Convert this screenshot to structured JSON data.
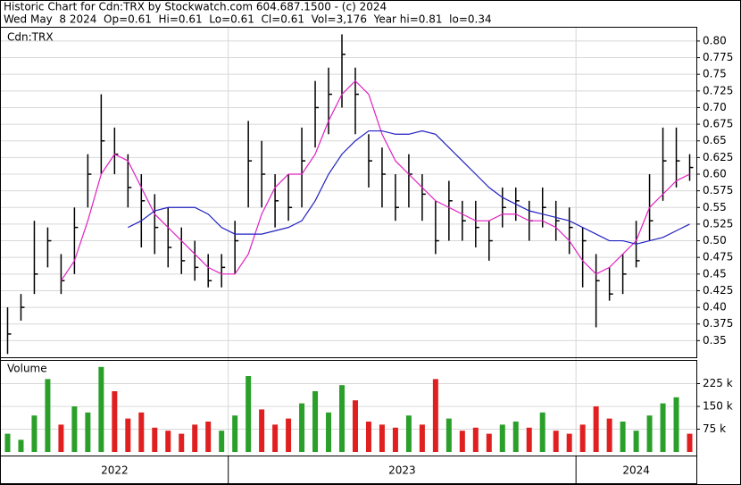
{
  "chart_data": {
    "type": "hlc",
    "title": "Historic Chart for Cdn:TRX by Stockwatch.com 604.687.1500 - (c) 2024",
    "subtitle": "Wed May  8 2024  Op=0.61  Hi=0.61  Lo=0.61  Cl=0.61  Vol=3,176  Year hi=0.81  lo=0.34",
    "symbol": "Cdn:TRX",
    "volume_label": "Volume",
    "categories": [
      "2022",
      null,
      null,
      null,
      null,
      null,
      null,
      null,
      null,
      null,
      null,
      null,
      null,
      null,
      null,
      null,
      null,
      "2023",
      null,
      null,
      null,
      null,
      null,
      null,
      null,
      null,
      null,
      null,
      null,
      null,
      null,
      null,
      null,
      null,
      null,
      null,
      null,
      null,
      null,
      null,
      null,
      null,
      null,
      "2024",
      null,
      null,
      null,
      null,
      null,
      null,
      null,
      null
    ],
    "high": [
      0.4,
      0.42,
      0.53,
      0.52,
      0.48,
      0.55,
      0.63,
      0.72,
      0.67,
      0.63,
      0.6,
      0.57,
      0.55,
      0.52,
      0.5,
      0.48,
      0.48,
      0.53,
      0.68,
      0.65,
      0.6,
      0.6,
      0.67,
      0.74,
      0.76,
      0.81,
      0.76,
      0.66,
      0.64,
      0.6,
      0.63,
      0.6,
      0.56,
      0.59,
      0.56,
      0.56,
      0.53,
      0.58,
      0.58,
      0.56,
      0.58,
      0.56,
      0.55,
      0.52,
      0.48,
      0.46,
      0.48,
      0.53,
      0.6,
      0.67,
      0.67,
      0.63
    ],
    "low": [
      0.33,
      0.38,
      0.42,
      0.46,
      0.42,
      0.45,
      0.55,
      0.6,
      0.6,
      0.55,
      0.49,
      0.48,
      0.46,
      0.45,
      0.44,
      0.43,
      0.43,
      0.45,
      0.55,
      0.55,
      0.52,
      0.53,
      0.55,
      0.64,
      0.66,
      0.7,
      0.66,
      0.58,
      0.55,
      0.53,
      0.55,
      0.53,
      0.48,
      0.5,
      0.5,
      0.49,
      0.47,
      0.52,
      0.53,
      0.5,
      0.52,
      0.5,
      0.48,
      0.43,
      0.37,
      0.41,
      0.42,
      0.46,
      0.5,
      0.56,
      0.58,
      0.59
    ],
    "close": [
      0.36,
      0.4,
      0.45,
      0.5,
      0.44,
      0.52,
      0.6,
      0.65,
      0.63,
      0.58,
      0.56,
      0.52,
      0.49,
      0.47,
      0.46,
      0.44,
      0.46,
      0.5,
      0.62,
      0.6,
      0.56,
      0.55,
      0.62,
      0.7,
      0.72,
      0.78,
      0.72,
      0.62,
      0.6,
      0.55,
      0.6,
      0.57,
      0.5,
      0.56,
      0.53,
      0.52,
      0.5,
      0.55,
      0.56,
      0.53,
      0.55,
      0.53,
      0.52,
      0.5,
      0.44,
      0.42,
      0.45,
      0.47,
      0.53,
      0.62,
      0.62,
      0.61
    ],
    "series": [
      {
        "name": "MA short",
        "color": "#e020c0",
        "values": [
          null,
          null,
          null,
          null,
          0.44,
          0.47,
          0.53,
          0.6,
          0.63,
          0.62,
          0.58,
          0.54,
          0.52,
          0.5,
          0.48,
          0.46,
          0.45,
          0.45,
          0.48,
          0.54,
          0.58,
          0.6,
          0.6,
          0.63,
          0.68,
          0.72,
          0.74,
          0.72,
          0.66,
          0.62,
          0.6,
          0.58,
          0.56,
          0.55,
          0.54,
          0.53,
          0.53,
          0.54,
          0.54,
          0.53,
          0.53,
          0.52,
          0.5,
          0.47,
          0.45,
          0.46,
          0.48,
          0.5,
          0.55,
          0.57,
          0.59,
          0.6
        ]
      },
      {
        "name": "MA long",
        "color": "#2020c0",
        "values": [
          null,
          null,
          null,
          null,
          null,
          null,
          null,
          null,
          null,
          0.52,
          0.53,
          0.545,
          0.55,
          0.55,
          0.55,
          0.54,
          0.52,
          0.51,
          0.51,
          0.51,
          0.515,
          0.52,
          0.53,
          0.56,
          0.6,
          0.63,
          0.65,
          0.665,
          0.665,
          0.66,
          0.66,
          0.665,
          0.66,
          0.64,
          0.62,
          0.6,
          0.58,
          0.565,
          0.555,
          0.545,
          0.54,
          0.535,
          0.53,
          0.52,
          0.51,
          0.5,
          0.5,
          0.495,
          0.5,
          0.505,
          0.515,
          0.525
        ]
      }
    ],
    "volume": [
      60000,
      40000,
      120000,
      240000,
      90000,
      150000,
      130000,
      280000,
      200000,
      110000,
      130000,
      80000,
      70000,
      60000,
      90000,
      100000,
      70000,
      120000,
      250000,
      140000,
      90000,
      110000,
      160000,
      200000,
      130000,
      220000,
      170000,
      100000,
      90000,
      80000,
      120000,
      90000,
      240000,
      110000,
      70000,
      80000,
      60000,
      90000,
      100000,
      80000,
      130000,
      70000,
      60000,
      90000,
      150000,
      110000,
      100000,
      70000,
      120000,
      160000,
      180000,
      60000
    ],
    "up_color": "#2aa02a",
    "down_color": "#e02020",
    "bar_color": "#000000",
    "ylim": [
      0.325,
      0.82
    ],
    "yticks": [
      0.35,
      0.375,
      {
        "value": 0.4,
        "label": "0.40"
      },
      0.425,
      0.45,
      0.475,
      {
        "value": 0.5,
        "label": "0.50"
      },
      0.525,
      0.55,
      0.575,
      {
        "value": 0.6,
        "label": "0.60"
      },
      0.625,
      0.65,
      0.675,
      {
        "value": 0.7,
        "label": "0.70"
      },
      0.725,
      0.75,
      0.775,
      {
        "value": 0.8,
        "label": "0.80"
      }
    ],
    "vlim": [
      0,
      300000
    ],
    "vticks": [
      {
        "value": 75000,
        "label": "75 k"
      },
      {
        "value": 150000,
        "label": "150 k"
      },
      {
        "value": 225000,
        "label": "225 k"
      }
    ],
    "grid": true
  }
}
